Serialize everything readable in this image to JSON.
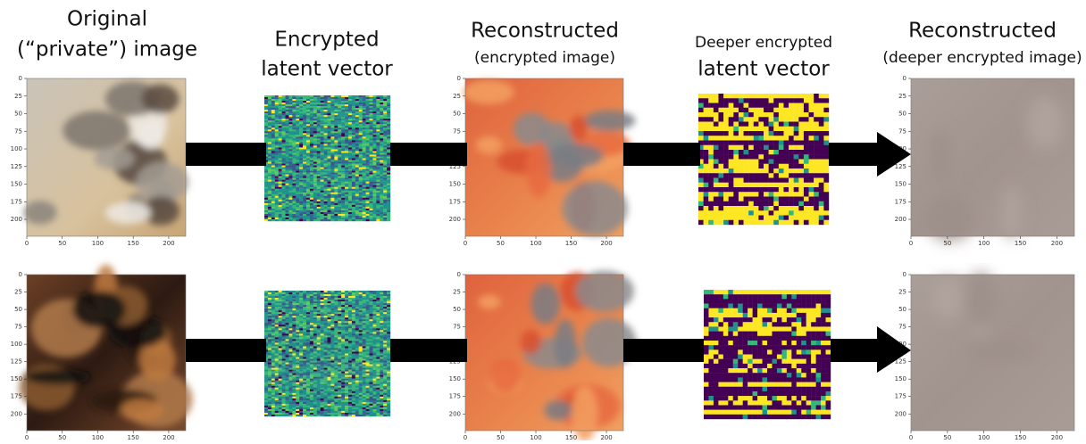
{
  "headers": [
    {
      "line1": "Original",
      "line2": "(“private”) image"
    },
    {
      "line1": "Encrypted",
      "line2": "latent vector"
    },
    {
      "line1": "Reconstructed",
      "line2": "(encrypted image)"
    },
    {
      "line1": "Deeper encrypted",
      "line2": "latent vector"
    },
    {
      "line1": "Reconstructed",
      "line2": "(deeper encrypted image)"
    }
  ],
  "axes": {
    "lim": [
      0,
      224
    ],
    "xticks": [
      0,
      50,
      100,
      150,
      200
    ],
    "yticks": [
      0,
      25,
      50,
      75,
      100,
      125,
      150,
      175,
      200
    ]
  }
}
